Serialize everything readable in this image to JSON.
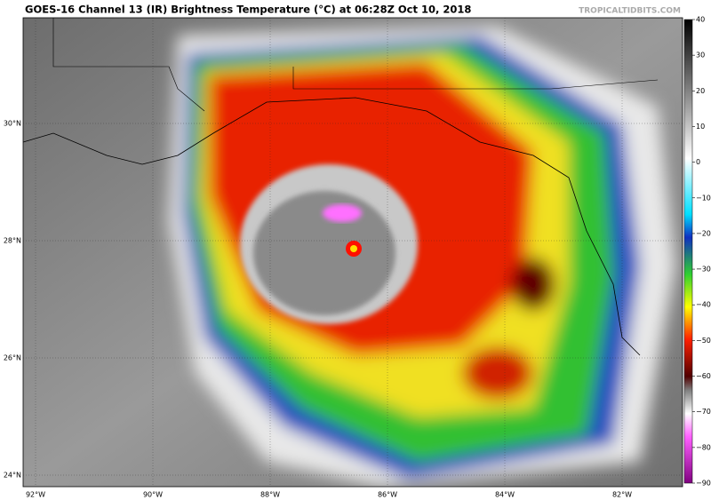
{
  "header": {
    "title": "GOES-16 Channel 13 (IR) Brightness Temperature (°C) at 06:28Z Oct 10, 2018",
    "source": "TROPICALTIDBITS.COM"
  },
  "map": {
    "lat_labels": [
      "30°N",
      "28°N",
      "26°N",
      "24°N"
    ],
    "lon_labels": [
      "92°W",
      "90°W",
      "88°W",
      "86°W",
      "84°W",
      "82°W"
    ]
  },
  "colorbar": {
    "range": [
      -90,
      40
    ],
    "ticks": [
      40,
      30,
      20,
      10,
      0,
      {
        "value": -10,
        "label": "−10"
      },
      {
        "value": -20,
        "label": "−20"
      },
      {
        "value": -30,
        "label": "−30"
      },
      {
        "value": -40,
        "label": "−40"
      },
      {
        "value": -50,
        "label": "−50"
      },
      {
        "value": -60,
        "label": "−60"
      },
      {
        "value": -70,
        "label": "−70"
      },
      {
        "value": -80,
        "label": "−80"
      },
      {
        "value": -90,
        "label": "−90"
      }
    ]
  }
}
